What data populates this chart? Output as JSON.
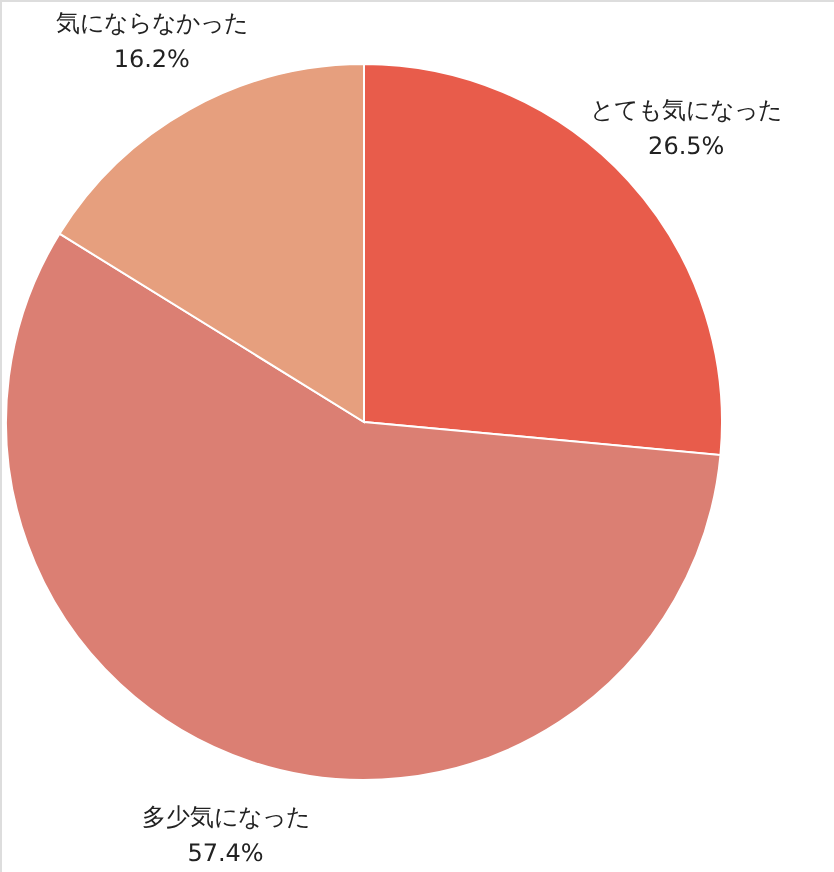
{
  "chart_data": {
    "type": "pie",
    "categories": [
      "とても気になった",
      "多少気になった",
      "気にならなかった"
    ],
    "values": [
      26.5,
      57.4,
      16.2
    ],
    "value_labels": [
      "26.5%",
      "57.4%",
      "16.2%"
    ],
    "colors": [
      "#e85c4b",
      "#db7f73",
      "#e69f7e"
    ]
  }
}
